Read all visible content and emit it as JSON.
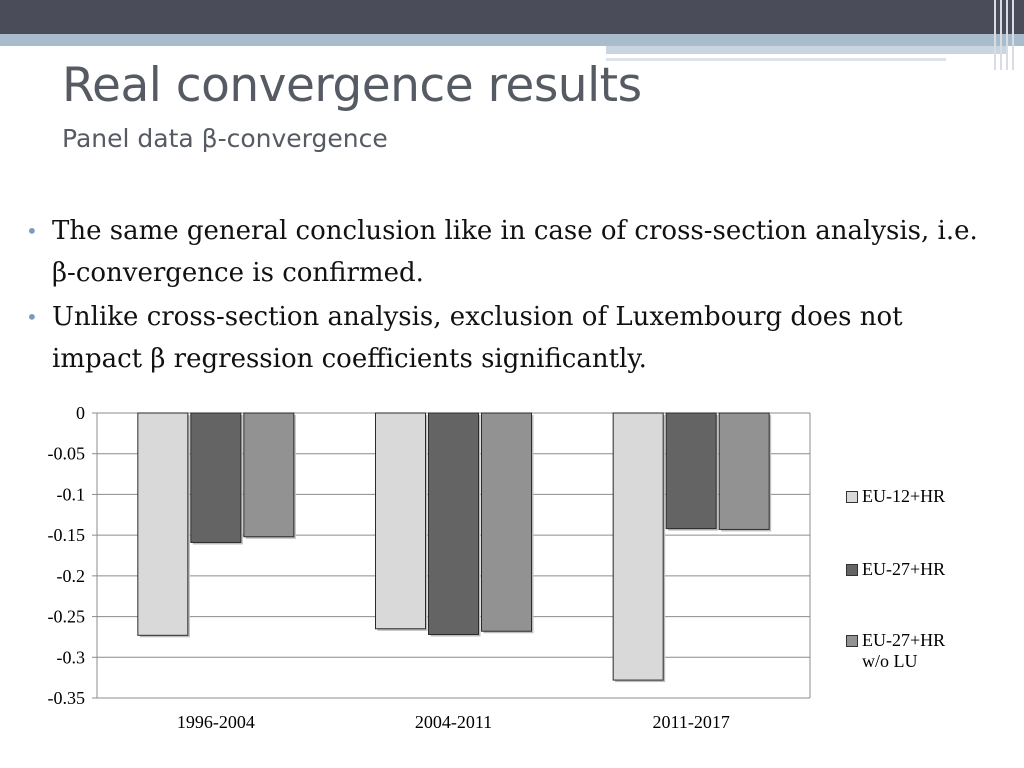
{
  "slide": {
    "title": "Real convergence results",
    "subtitle": "Panel data β-convergence",
    "bullets": [
      "The same general conclusion like in case of cross-section analysis, i.e. β-convergence is confirmed.",
      "Unlike cross-section analysis, exclusion of Luxembourg does not impact β regression coefficients significantly."
    ],
    "bullet_glyph": "•",
    "colors": {
      "header_dark": "#4a4c5a",
      "header_blue": "#a9bccd",
      "bullet": "#7a9bbd",
      "title": "#555a63"
    }
  },
  "chart_data": {
    "type": "bar",
    "categories": [
      "1996-2004",
      "2004-2011",
      "2011-2017"
    ],
    "series": [
      {
        "name": "EU-12+HR",
        "values": [
          -0.273,
          -0.265,
          -0.328
        ],
        "color": "#d9d9d9"
      },
      {
        "name": "EU-27+HR",
        "values": [
          -0.159,
          -0.272,
          -0.142
        ],
        "color": "#646464"
      },
      {
        "name": "EU-27+HR w/o LU",
        "values": [
          -0.152,
          -0.268,
          -0.143
        ],
        "color": "#929292"
      }
    ],
    "ylim": [
      -0.35,
      0
    ],
    "yticks": [
      "0",
      "-0.05",
      "-0.1",
      "-0.15",
      "-0.2",
      "-0.25",
      "-0.3",
      "-0.35"
    ],
    "ytick_values": [
      0,
      -0.05,
      -0.1,
      -0.15,
      -0.2,
      -0.25,
      -0.3,
      -0.35
    ],
    "grid": true,
    "legend_position": "right",
    "title": "",
    "xlabel": "",
    "ylabel": ""
  }
}
